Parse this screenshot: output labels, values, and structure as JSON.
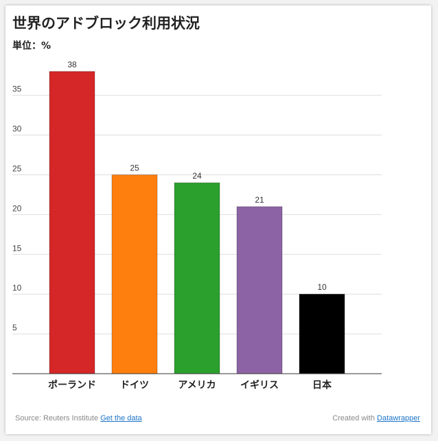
{
  "header": {
    "title": "世界のアドブロック利用状況",
    "unit": "単位：%"
  },
  "footer": {
    "source_label": "Source: Reuters Institute",
    "data_link": "Get the data",
    "credit_label": "Created with",
    "credit_link": "Datawrapper"
  },
  "chart_data": {
    "type": "bar",
    "categories": [
      "ポーランド",
      "ドイツ",
      "アメリカ",
      "イギリス",
      "日本"
    ],
    "values": [
      38,
      25,
      24,
      21,
      10
    ],
    "colors": [
      "#d62728",
      "#ff7f0e",
      "#2ca02c",
      "#8c63a4",
      "#000000"
    ],
    "title": "世界のアドブロック利用状況",
    "ylabel": "単位：%",
    "ylim": [
      0,
      40
    ],
    "yticks": [
      5,
      10,
      15,
      20,
      25,
      30,
      35
    ],
    "grid": true,
    "data_labels": [
      "38",
      "25",
      "24",
      "21",
      "10"
    ]
  }
}
